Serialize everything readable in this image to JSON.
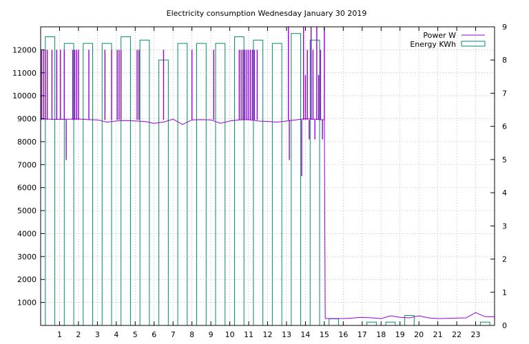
{
  "chart_data": {
    "type": "bar",
    "title": "Electricity consumption Wednesday January 30 2019",
    "xlabel": "",
    "ylabel": "",
    "x_ticks": [
      1,
      2,
      3,
      4,
      5,
      6,
      7,
      8,
      9,
      10,
      11,
      12,
      13,
      14,
      15,
      16,
      17,
      18,
      19,
      20,
      21,
      22,
      23
    ],
    "xlim": [
      0,
      24
    ],
    "y_left": {
      "ticks": [
        1000,
        2000,
        3000,
        4000,
        5000,
        6000,
        7000,
        8000,
        9000,
        10000,
        11000,
        12000
      ],
      "lim": [
        0,
        13000
      ]
    },
    "y_right": {
      "ticks": [
        0,
        1,
        2,
        3,
        4,
        5,
        6,
        7,
        8,
        9
      ],
      "lim": [
        0,
        9
      ]
    },
    "grid": true,
    "legend_position": "top-right",
    "series": [
      {
        "name": "Power W",
        "axis": "left",
        "type": "line",
        "color": "#9400d3",
        "x": [
          0.0,
          0.5,
          1.0,
          1.5,
          2.0,
          2.5,
          3.0,
          3.5,
          4.0,
          4.5,
          5.0,
          5.5,
          6.0,
          6.5,
          7.0,
          7.5,
          8.0,
          8.5,
          9.0,
          9.5,
          10.0,
          10.5,
          11.0,
          11.5,
          12.0,
          12.5,
          13.0,
          13.5,
          14.0,
          14.5,
          15.0,
          15.05,
          15.5,
          16.0,
          16.5,
          17.0,
          17.5,
          18.0,
          18.5,
          19.0,
          19.5,
          20.0,
          20.5,
          21.0,
          21.5,
          22.0,
          22.5,
          23.0,
          23.5,
          24.0
        ],
        "y": [
          9000,
          8980,
          8970,
          8980,
          8990,
          8960,
          8950,
          8850,
          8900,
          8920,
          8900,
          8880,
          8800,
          8850,
          8980,
          8750,
          8950,
          8960,
          8950,
          8800,
          8900,
          8950,
          8960,
          8900,
          8880,
          8850,
          8900,
          8950,
          9000,
          8980,
          8950,
          300,
          300,
          300,
          320,
          350,
          330,
          300,
          420,
          350,
          330,
          420,
          330,
          300,
          310,
          320,
          330,
          560,
          380,
          380
        ],
        "spikes": [
          {
            "x": 0.05,
            "y": 12000
          },
          {
            "x": 0.15,
            "y": 12000
          },
          {
            "x": 0.25,
            "y": 12000
          },
          {
            "x": 0.35,
            "y": 12000
          },
          {
            "x": 0.6,
            "y": 12000
          },
          {
            "x": 0.85,
            "y": 12000
          },
          {
            "x": 1.05,
            "y": 12000
          },
          {
            "x": 1.25,
            "y": 12000
          },
          {
            "x": 1.35,
            "y": 7200
          },
          {
            "x": 1.7,
            "y": 12000
          },
          {
            "x": 1.8,
            "y": 12000
          },
          {
            "x": 1.9,
            "y": 12000
          },
          {
            "x": 2.0,
            "y": 12000
          },
          {
            "x": 2.55,
            "y": 12000
          },
          {
            "x": 3.4,
            "y": 12000
          },
          {
            "x": 3.75,
            "y": 12000
          },
          {
            "x": 4.05,
            "y": 12000
          },
          {
            "x": 4.15,
            "y": 12000
          },
          {
            "x": 4.25,
            "y": 12000
          },
          {
            "x": 5.1,
            "y": 12000
          },
          {
            "x": 5.2,
            "y": 12000
          },
          {
            "x": 6.5,
            "y": 12000
          },
          {
            "x": 8.0,
            "y": 12000
          },
          {
            "x": 9.15,
            "y": 12000
          },
          {
            "x": 10.5,
            "y": 12000
          },
          {
            "x": 10.6,
            "y": 12000
          },
          {
            "x": 10.7,
            "y": 12000
          },
          {
            "x": 10.8,
            "y": 12000
          },
          {
            "x": 10.9,
            "y": 12000
          },
          {
            "x": 11.0,
            "y": 12000
          },
          {
            "x": 11.1,
            "y": 12000
          },
          {
            "x": 11.2,
            "y": 12000
          },
          {
            "x": 11.3,
            "y": 12000
          },
          {
            "x": 11.45,
            "y": 12000
          },
          {
            "x": 13.1,
            "y": 13000
          },
          {
            "x": 13.15,
            "y": 7200
          },
          {
            "x": 13.8,
            "y": 6500
          },
          {
            "x": 13.9,
            "y": 13000
          },
          {
            "x": 14.0,
            "y": 10900
          },
          {
            "x": 14.1,
            "y": 12000
          },
          {
            "x": 14.2,
            "y": 8100
          },
          {
            "x": 14.3,
            "y": 13000
          },
          {
            "x": 14.4,
            "y": 12000
          },
          {
            "x": 14.5,
            "y": 8100
          },
          {
            "x": 14.6,
            "y": 13000
          },
          {
            "x": 14.7,
            "y": 10900
          },
          {
            "x": 14.8,
            "y": 12000
          },
          {
            "x": 14.9,
            "y": 8100
          },
          {
            "x": 15.0,
            "y": 13000
          }
        ]
      },
      {
        "name": "Energy KWh",
        "axis": "right",
        "type": "bar",
        "color": "#008b6b",
        "hours": [
          0,
          1,
          2,
          3,
          4,
          5,
          6,
          7,
          8,
          9,
          10,
          11,
          12,
          13,
          14,
          15,
          16,
          17,
          18,
          19,
          20,
          21,
          22,
          23
        ],
        "values": [
          8.7,
          8.5,
          8.5,
          8.5,
          8.7,
          8.6,
          8.0,
          8.5,
          8.5,
          8.5,
          8.7,
          8.6,
          8.5,
          8.8,
          8.6,
          0.2,
          0.0,
          0.1,
          0.1,
          0.3,
          0.0,
          0.0,
          0.0,
          0.1
        ]
      }
    ]
  }
}
